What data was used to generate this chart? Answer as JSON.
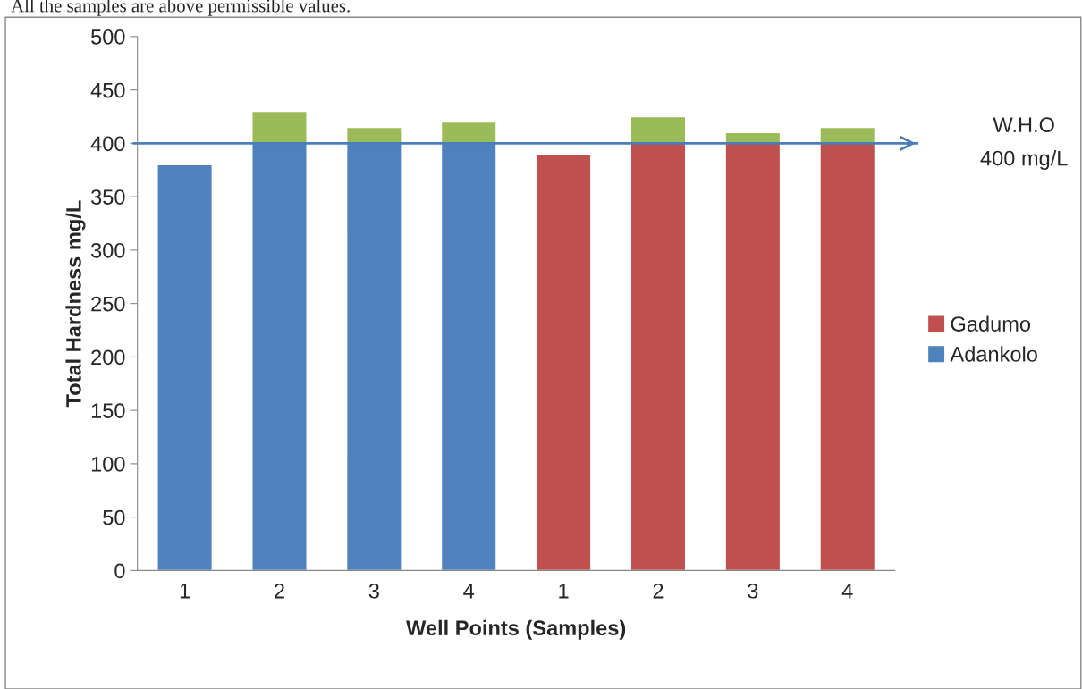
{
  "chart_data": {
    "type": "bar",
    "stacked": true,
    "xlabel": "Well Points (Samples)",
    "ylabel": "Total Hardness mg/L",
    "categories": [
      "1",
      "2",
      "3",
      "4",
      "1",
      "2",
      "3",
      "4"
    ],
    "series": [
      {
        "name": "Adankolo",
        "color": "#4f81bd",
        "values": [
          380,
          400,
          400,
          400,
          null,
          null,
          null,
          null
        ]
      },
      {
        "name": "Gadumo",
        "color": "#c0504d",
        "values": [
          null,
          null,
          null,
          null,
          390,
          400,
          400,
          400
        ]
      },
      {
        "color": "#9bbb59",
        "values": [
          null,
          30,
          15,
          20,
          null,
          25,
          10,
          15
        ]
      }
    ],
    "ylim": [
      0,
      500
    ],
    "yticks": [
      0,
      50,
      100,
      150,
      200,
      250,
      300,
      350,
      400,
      450,
      500
    ],
    "ref_lines": [
      {
        "axis": "y",
        "value": 400,
        "label": "W.H.O\n400 mg/L",
        "color": "#4a7ebb"
      }
    ],
    "annotations": [
      "All the samples are above permissible values."
    ],
    "legend": "right",
    "grid": false
  }
}
